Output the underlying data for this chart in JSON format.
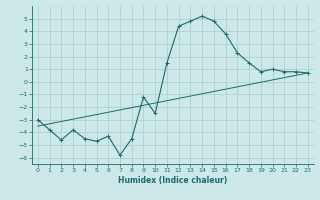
{
  "title": "",
  "xlabel": "Humidex (Indice chaleur)",
  "ylabel": "",
  "background_color": "#cce8e8",
  "grid_color": "#aacccc",
  "line_color": "#1a6b6b",
  "xlim": [
    -0.5,
    23.5
  ],
  "ylim": [
    -6.5,
    6.0
  ],
  "xticks": [
    0,
    1,
    2,
    3,
    4,
    5,
    6,
    7,
    8,
    9,
    10,
    11,
    12,
    13,
    14,
    15,
    16,
    17,
    18,
    19,
    20,
    21,
    22,
    23
  ],
  "yticks": [
    -6,
    -5,
    -4,
    -3,
    -2,
    -1,
    0,
    1,
    2,
    3,
    4,
    5
  ],
  "curve1_x": [
    0,
    1,
    2,
    3,
    4,
    5,
    6,
    7,
    8,
    9,
    10,
    11,
    12,
    13,
    14,
    15,
    16,
    17,
    18,
    19,
    20,
    21,
    22,
    23
  ],
  "curve1_y": [
    -3.0,
    -3.8,
    -4.6,
    -3.8,
    -4.5,
    -4.7,
    -4.3,
    -5.8,
    -4.5,
    -1.2,
    -2.5,
    1.5,
    4.4,
    4.8,
    5.2,
    4.8,
    3.8,
    2.3,
    1.5,
    0.8,
    1.0,
    0.8,
    0.8,
    0.7
  ],
  "curve2_x": [
    0,
    23
  ],
  "curve2_y": [
    -3.5,
    0.7
  ],
  "marker": "+"
}
